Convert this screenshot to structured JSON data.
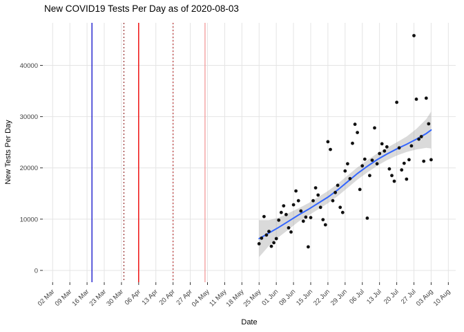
{
  "chart_data": {
    "type": "scatter",
    "title": "New COVID19 Tests Per Day as of 2020-08-03",
    "xlabel": "Date",
    "ylabel": "New Tests Per Day",
    "x_domain": [
      "2020-02-27",
      "2020-08-13"
    ],
    "y_domain": [
      -2300,
      48300
    ],
    "grid": {
      "show": true,
      "color": "#E4E4E4"
    },
    "axis_text_color": "#404040",
    "tick_mark_color": "#333333",
    "point_color": "#111111",
    "x_ticks": [
      {
        "date": "2020-03-02",
        "label": "02 Mar"
      },
      {
        "date": "2020-03-09",
        "label": "09 Mar"
      },
      {
        "date": "2020-03-16",
        "label": "16 Mar"
      },
      {
        "date": "2020-03-23",
        "label": "23 Mar"
      },
      {
        "date": "2020-03-30",
        "label": "30 Mar"
      },
      {
        "date": "2020-04-06",
        "label": "06 Apr"
      },
      {
        "date": "2020-04-13",
        "label": "13 Apr"
      },
      {
        "date": "2020-04-20",
        "label": "20 Apr"
      },
      {
        "date": "2020-04-27",
        "label": "27 Apr"
      },
      {
        "date": "2020-05-04",
        "label": "04 May"
      },
      {
        "date": "2020-05-11",
        "label": "11 May"
      },
      {
        "date": "2020-05-18",
        "label": "18 May"
      },
      {
        "date": "2020-05-25",
        "label": "25 May"
      },
      {
        "date": "2020-06-01",
        "label": "01 Jun"
      },
      {
        "date": "2020-06-08",
        "label": "08 Jun"
      },
      {
        "date": "2020-06-15",
        "label": "15 Jun"
      },
      {
        "date": "2020-06-22",
        "label": "22 Jun"
      },
      {
        "date": "2020-06-29",
        "label": "29 Jun"
      },
      {
        "date": "2020-07-06",
        "label": "06 Jul"
      },
      {
        "date": "2020-07-13",
        "label": "13 Jul"
      },
      {
        "date": "2020-07-20",
        "label": "20 Jul"
      },
      {
        "date": "2020-07-27",
        "label": "27 Jul"
      },
      {
        "date": "2020-08-03",
        "label": "03 Aug"
      },
      {
        "date": "2020-08-10",
        "label": "10 Aug"
      }
    ],
    "y_ticks": [
      {
        "value": 0,
        "label": "0"
      },
      {
        "value": 10000,
        "label": "10000"
      },
      {
        "value": 20000,
        "label": "20000"
      },
      {
        "value": 30000,
        "label": "30000"
      },
      {
        "value": 40000,
        "label": "40000"
      }
    ],
    "reference_lines": [
      {
        "date": "2020-03-18",
        "color": "#1A1ACC",
        "style": "solid",
        "width": 1.4
      },
      {
        "date": "2020-03-31",
        "color": "#8B1A1A",
        "style": "dotted",
        "width": 1.1
      },
      {
        "date": "2020-04-06",
        "color": "#EE0000",
        "style": "solid",
        "width": 1.4
      },
      {
        "date": "2020-04-20",
        "color": "#B22222",
        "style": "dotted",
        "width": 1.1
      },
      {
        "date": "2020-05-03",
        "color": "#F09090",
        "style": "solid",
        "width": 1.2
      }
    ],
    "smooth": {
      "color": "#3366FF",
      "line_width": 2,
      "ribbon_color": "#9E9E9E",
      "ribbon_opacity": 0.38,
      "points": [
        [
          "2020-05-25",
          6200,
          2600,
          9800
        ],
        [
          "2020-05-29",
          7300,
          4800,
          9800
        ],
        [
          "2020-06-02",
          8400,
          6500,
          10300
        ],
        [
          "2020-06-06",
          9600,
          8000,
          11200
        ],
        [
          "2020-06-10",
          10800,
          9500,
          12100
        ],
        [
          "2020-06-14",
          11900,
          10700,
          13100
        ],
        [
          "2020-06-18",
          13100,
          11900,
          14300
        ],
        [
          "2020-06-22",
          14300,
          13100,
          15500
        ],
        [
          "2020-06-26",
          15700,
          14500,
          16900
        ],
        [
          "2020-06-30",
          17300,
          16100,
          18500
        ],
        [
          "2020-07-04",
          18900,
          17700,
          20100
        ],
        [
          "2020-07-08",
          20300,
          19100,
          21500
        ],
        [
          "2020-07-12",
          21600,
          20400,
          22800
        ],
        [
          "2020-07-16",
          22700,
          21500,
          23900
        ],
        [
          "2020-07-20",
          23700,
          22400,
          25000
        ],
        [
          "2020-07-24",
          24600,
          23100,
          26100
        ],
        [
          "2020-07-28",
          25600,
          23600,
          27600
        ],
        [
          "2020-08-01",
          26700,
          23900,
          29500
        ],
        [
          "2020-08-03",
          27400,
          23800,
          31000
        ]
      ]
    },
    "points": [
      [
        "2020-05-25",
        5200
      ],
      [
        "2020-05-26",
        6300
      ],
      [
        "2020-05-27",
        10500
      ],
      [
        "2020-05-28",
        6900
      ],
      [
        "2020-05-29",
        7600
      ],
      [
        "2020-05-30",
        4700
      ],
      [
        "2020-05-31",
        5400
      ],
      [
        "2020-06-01",
        6200
      ],
      [
        "2020-06-02",
        9800
      ],
      [
        "2020-06-03",
        11300
      ],
      [
        "2020-06-04",
        12600
      ],
      [
        "2020-06-05",
        10900
      ],
      [
        "2020-06-06",
        8300
      ],
      [
        "2020-06-07",
        7500
      ],
      [
        "2020-06-08",
        12800
      ],
      [
        "2020-06-09",
        15500
      ],
      [
        "2020-06-10",
        13600
      ],
      [
        "2020-06-11",
        11600
      ],
      [
        "2020-06-12",
        9600
      ],
      [
        "2020-06-13",
        10400
      ],
      [
        "2020-06-14",
        4600
      ],
      [
        "2020-06-15",
        10300
      ],
      [
        "2020-06-16",
        13600
      ],
      [
        "2020-06-17",
        16100
      ],
      [
        "2020-06-18",
        14700
      ],
      [
        "2020-06-19",
        12300
      ],
      [
        "2020-06-20",
        9900
      ],
      [
        "2020-06-21",
        8900
      ],
      [
        "2020-06-22",
        25100
      ],
      [
        "2020-06-23",
        23600
      ],
      [
        "2020-06-24",
        13600
      ],
      [
        "2020-06-25",
        15200
      ],
      [
        "2020-06-26",
        16600
      ],
      [
        "2020-06-27",
        12300
      ],
      [
        "2020-06-28",
        11300
      ],
      [
        "2020-06-29",
        19400
      ],
      [
        "2020-06-30",
        20800
      ],
      [
        "2020-07-01",
        17900
      ],
      [
        "2020-07-02",
        24800
      ],
      [
        "2020-07-03",
        28500
      ],
      [
        "2020-07-04",
        26900
      ],
      [
        "2020-07-05",
        15800
      ],
      [
        "2020-07-06",
        20400
      ],
      [
        "2020-07-07",
        21700
      ],
      [
        "2020-07-08",
        10200
      ],
      [
        "2020-07-09",
        18500
      ],
      [
        "2020-07-10",
        21500
      ],
      [
        "2020-07-11",
        27800
      ],
      [
        "2020-07-12",
        20800
      ],
      [
        "2020-07-13",
        22800
      ],
      [
        "2020-07-14",
        24700
      ],
      [
        "2020-07-15",
        23300
      ],
      [
        "2020-07-16",
        24100
      ],
      [
        "2020-07-17",
        19800
      ],
      [
        "2020-07-18",
        18500
      ],
      [
        "2020-07-19",
        17400
      ],
      [
        "2020-07-20",
        32800
      ],
      [
        "2020-07-21",
        23900
      ],
      [
        "2020-07-22",
        19600
      ],
      [
        "2020-07-23",
        20900
      ],
      [
        "2020-07-24",
        17800
      ],
      [
        "2020-07-25",
        21600
      ],
      [
        "2020-07-26",
        24300
      ],
      [
        "2020-07-27",
        45800
      ],
      [
        "2020-07-28",
        33400
      ],
      [
        "2020-07-29",
        25600
      ],
      [
        "2020-07-30",
        26100
      ],
      [
        "2020-07-31",
        21300
      ],
      [
        "2020-08-01",
        33600
      ],
      [
        "2020-08-02",
        28600
      ],
      [
        "2020-08-03",
        21600
      ]
    ]
  }
}
